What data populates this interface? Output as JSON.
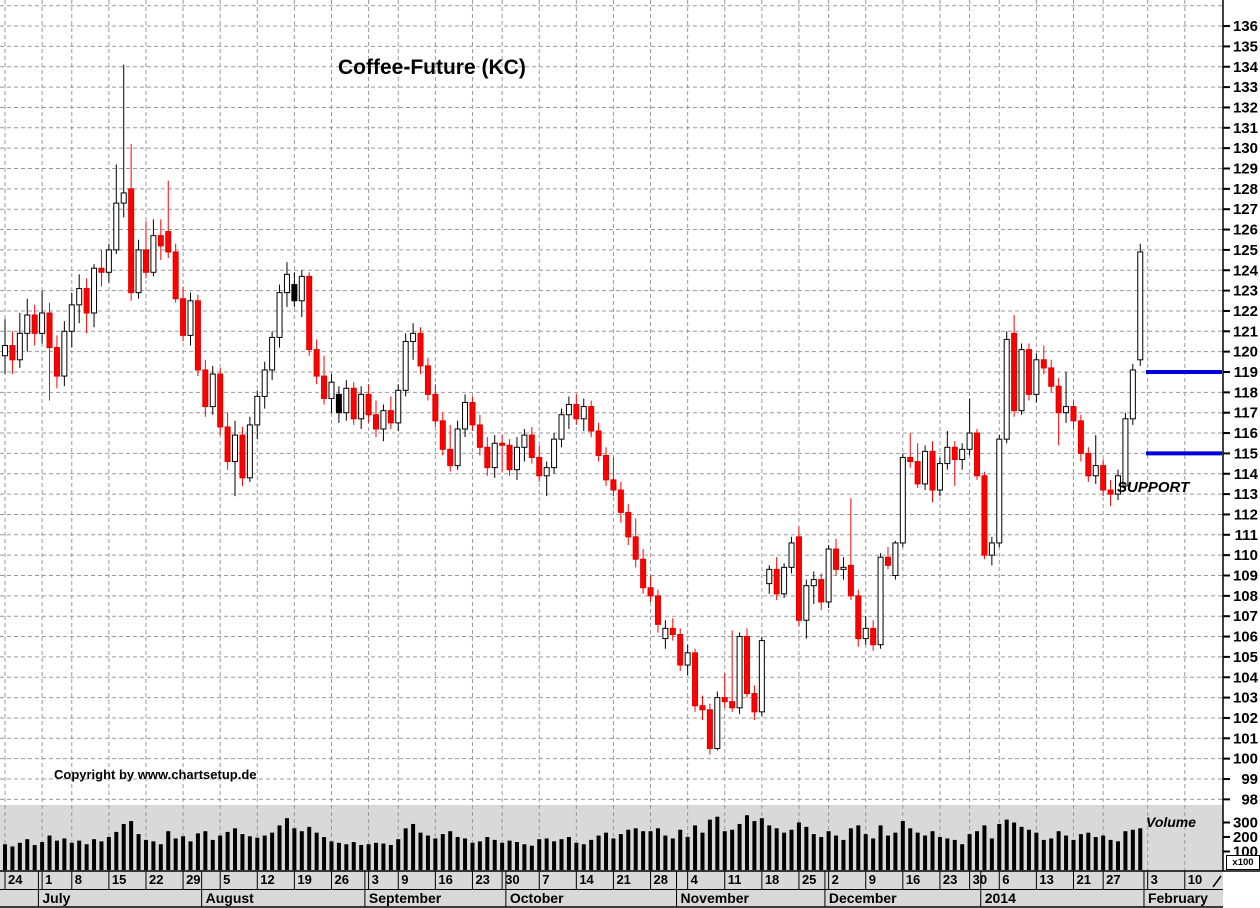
{
  "title": "Coffee-Future (KC)",
  "copyright": "Copyright by www.chartsetup.de",
  "annotations": {
    "support": "SUPPORT",
    "volume": "Volume",
    "multiplier": "x100"
  },
  "colors": {
    "up_candle": "#ffffff",
    "up_border": "#000000",
    "down_candle": "#ff0000",
    "black_candle": "#000000",
    "support_line": "#0000dd",
    "grid": "#999999",
    "volume_pane_bg": "#d9d9d9",
    "volume_bar": "#000000",
    "axis": "#000000"
  },
  "y_axis": {
    "price_labels": [
      136,
      135,
      134,
      133,
      132,
      131,
      130,
      129,
      128,
      127,
      126,
      125,
      124,
      123,
      122,
      121,
      120,
      119,
      118,
      117,
      116,
      115,
      114,
      113,
      112,
      111,
      110,
      109,
      108,
      107,
      106,
      105,
      104,
      103,
      102,
      101,
      100,
      99,
      98
    ]
  },
  "volume_axis": {
    "labels": [
      300,
      200,
      100
    ]
  },
  "chart_data": {
    "type": "candlestick+volume-bar",
    "instrument": "Coffee-Future (KC)",
    "period": "daily, late June 2013 - early February 2014",
    "price_range": [
      98,
      136
    ],
    "support_levels": [
      119,
      115
    ],
    "volume_unit_multiplier": 100,
    "legend_position": "none",
    "grid": "dashed, weekly vertical / 1-unit horizontal",
    "x_axis": {
      "week_ticks": [
        {
          "label": "24",
          "i": 0
        },
        {
          "label": "1",
          "i": 5
        },
        {
          "label": "8",
          "i": 9
        },
        {
          "label": "15",
          "i": 14
        },
        {
          "label": "22",
          "i": 19
        },
        {
          "label": "29",
          "i": 24
        },
        {
          "label": "5",
          "i": 29
        },
        {
          "label": "12",
          "i": 34
        },
        {
          "label": "19",
          "i": 39
        },
        {
          "label": "26",
          "i": 44
        },
        {
          "label": "3",
          "i": 49
        },
        {
          "label": "9",
          "i": 53
        },
        {
          "label": "16",
          "i": 58
        },
        {
          "label": "23",
          "i": 63
        },
        {
          "label": "30",
          "i": 67
        },
        {
          "label": "7",
          "i": 72
        },
        {
          "label": "14",
          "i": 77
        },
        {
          "label": "21",
          "i": 82
        },
        {
          "label": "28",
          "i": 87
        },
        {
          "label": "4",
          "i": 92
        },
        {
          "label": "11",
          "i": 97
        },
        {
          "label": "18",
          "i": 102
        },
        {
          "label": "25",
          "i": 107
        },
        {
          "label": "2",
          "i": 111
        },
        {
          "label": "9",
          "i": 116
        },
        {
          "label": "16",
          "i": 121
        },
        {
          "label": "23",
          "i": 126
        },
        {
          "label": "30",
          "i": 130
        },
        {
          "label": "6",
          "i": 134
        },
        {
          "label": "13",
          "i": 139
        },
        {
          "label": "21",
          "i": 144
        },
        {
          "label": "27",
          "i": 148
        },
        {
          "label": "3",
          "i": 154
        },
        {
          "label": "10",
          "i": 159
        }
      ],
      "months": [
        {
          "label": "July",
          "i": 5
        },
        {
          "label": "August",
          "i": 27
        },
        {
          "label": "September",
          "i": 49
        },
        {
          "label": "October",
          "i": 68
        },
        {
          "label": "November",
          "i": 91
        },
        {
          "label": "December",
          "i": 111
        },
        {
          "label": "2014",
          "i": 132
        },
        {
          "label": "February",
          "i": 154
        }
      ]
    },
    "columns": [
      "open",
      "high",
      "low",
      "close",
      "volume_x100"
    ],
    "black_body_indices": [
      39,
      45
    ],
    "candles": [
      [
        119.8,
        121.6,
        118.9,
        120.3,
        150
      ],
      [
        120.3,
        121.0,
        118.9,
        119.6,
        135
      ],
      [
        119.6,
        121.9,
        119.2,
        120.9,
        160
      ],
      [
        120.9,
        122.6,
        120.0,
        121.8,
        185
      ],
      [
        121.8,
        122.3,
        120.3,
        120.9,
        145
      ],
      [
        120.9,
        123.0,
        120.4,
        121.9,
        165
      ],
      [
        121.9,
        122.4,
        117.6,
        120.2,
        210
      ],
      [
        120.2,
        120.8,
        118.2,
        118.8,
        175
      ],
      [
        118.8,
        121.5,
        118.3,
        121.0,
        190
      ],
      [
        121.0,
        122.9,
        120.2,
        122.3,
        160
      ],
      [
        122.3,
        123.8,
        121.4,
        123.1,
        175
      ],
      [
        123.1,
        123.6,
        120.9,
        121.9,
        150
      ],
      [
        121.9,
        124.3,
        121.2,
        124.1,
        185
      ],
      [
        124.1,
        125.0,
        123.2,
        123.9,
        170
      ],
      [
        123.9,
        125.3,
        123.4,
        125.0,
        200
      ],
      [
        125.0,
        129.2,
        124.8,
        127.3,
        235
      ],
      [
        127.3,
        134.1,
        126.6,
        127.8,
        290
      ],
      [
        128.0,
        130.2,
        122.5,
        122.9,
        310
      ],
      [
        122.9,
        125.5,
        122.6,
        125.0,
        220
      ],
      [
        125.0,
        126.4,
        123.6,
        123.9,
        180
      ],
      [
        123.9,
        126.5,
        123.7,
        125.7,
        170
      ],
      [
        125.7,
        126.5,
        124.5,
        125.2,
        150
      ],
      [
        125.9,
        128.4,
        124.6,
        124.9,
        240
      ],
      [
        124.9,
        125.3,
        122.4,
        122.6,
        190
      ],
      [
        122.6,
        123.2,
        120.5,
        120.8,
        205
      ],
      [
        120.8,
        122.9,
        120.3,
        122.5,
        170
      ],
      [
        122.5,
        122.8,
        118.8,
        119.1,
        225
      ],
      [
        119.1,
        119.6,
        116.8,
        117.3,
        240
      ],
      [
        117.3,
        119.3,
        116.9,
        118.9,
        180
      ],
      [
        118.9,
        119.2,
        115.9,
        116.3,
        210
      ],
      [
        116.3,
        117.0,
        114.2,
        114.6,
        235
      ],
      [
        114.6,
        116.6,
        112.9,
        115.9,
        260
      ],
      [
        115.9,
        116.3,
        113.4,
        113.8,
        220
      ],
      [
        113.8,
        116.8,
        113.6,
        116.4,
        205
      ],
      [
        116.4,
        118.1,
        115.7,
        117.8,
        195
      ],
      [
        117.8,
        119.5,
        117.2,
        119.1,
        210
      ],
      [
        119.1,
        121.0,
        118.6,
        120.7,
        230
      ],
      [
        120.7,
        123.3,
        120.2,
        122.9,
        280
      ],
      [
        122.9,
        124.4,
        122.2,
        123.8,
        330
      ],
      [
        123.3,
        123.9,
        122.2,
        122.5,
        260
      ],
      [
        122.5,
        124.0,
        121.7,
        123.7,
        240
      ],
      [
        123.7,
        123.9,
        119.8,
        120.1,
        270
      ],
      [
        120.1,
        120.6,
        118.4,
        118.8,
        230
      ],
      [
        118.8,
        119.8,
        117.4,
        117.7,
        200
      ],
      [
        117.7,
        118.9,
        117.0,
        118.5,
        170
      ],
      [
        117.9,
        118.3,
        116.5,
        117.0,
        160
      ],
      [
        117.0,
        118.6,
        116.6,
        118.2,
        150
      ],
      [
        118.2,
        118.5,
        116.4,
        116.7,
        165
      ],
      [
        116.7,
        118.3,
        116.2,
        117.9,
        145
      ],
      [
        117.9,
        118.4,
        116.5,
        116.9,
        150
      ],
      [
        116.9,
        117.6,
        115.8,
        116.2,
        160
      ],
      [
        116.2,
        117.4,
        115.6,
        117.1,
        155
      ],
      [
        117.1,
        117.8,
        116.2,
        116.5,
        145
      ],
      [
        116.5,
        118.4,
        116.1,
        118.1,
        185
      ],
      [
        118.1,
        120.9,
        117.8,
        120.5,
        260
      ],
      [
        120.5,
        121.4,
        119.6,
        120.9,
        290
      ],
      [
        120.9,
        121.2,
        118.9,
        119.3,
        230
      ],
      [
        119.3,
        119.7,
        117.6,
        117.9,
        210
      ],
      [
        117.9,
        118.4,
        116.3,
        116.6,
        190
      ],
      [
        116.6,
        117.0,
        114.9,
        115.2,
        220
      ],
      [
        115.2,
        116.4,
        114.1,
        114.4,
        240
      ],
      [
        114.4,
        116.6,
        114.2,
        116.2,
        200
      ],
      [
        116.2,
        117.9,
        115.8,
        117.5,
        190
      ],
      [
        117.5,
        117.8,
        116.1,
        116.4,
        160
      ],
      [
        116.4,
        116.9,
        114.9,
        115.3,
        170
      ],
      [
        115.3,
        115.8,
        113.9,
        114.3,
        200
      ],
      [
        114.3,
        115.9,
        113.8,
        115.5,
        180
      ],
      [
        115.5,
        115.9,
        114.1,
        115.4,
        160
      ],
      [
        115.4,
        115.7,
        113.9,
        114.2,
        175
      ],
      [
        114.2,
        115.8,
        113.7,
        115.3,
        165
      ],
      [
        115.3,
        116.2,
        114.6,
        115.9,
        150
      ],
      [
        115.9,
        116.3,
        114.5,
        114.8,
        140
      ],
      [
        114.8,
        115.4,
        113.6,
        113.9,
        185
      ],
      [
        113.9,
        114.6,
        112.9,
        114.3,
        190
      ],
      [
        114.3,
        116.0,
        114.0,
        115.7,
        170
      ],
      [
        115.7,
        117.2,
        115.3,
        116.9,
        185
      ],
      [
        116.9,
        117.8,
        116.2,
        117.4,
        200
      ],
      [
        117.4,
        117.9,
        116.4,
        116.7,
        160
      ],
      [
        116.7,
        117.7,
        116.1,
        117.3,
        150
      ],
      [
        117.3,
        117.6,
        115.8,
        116.1,
        180
      ],
      [
        116.1,
        116.5,
        114.6,
        114.9,
        210
      ],
      [
        114.9,
        115.3,
        113.4,
        113.7,
        230
      ],
      [
        113.7,
        114.8,
        112.9,
        113.2,
        190
      ],
      [
        113.2,
        113.6,
        111.6,
        112.1,
        220
      ],
      [
        112.1,
        112.5,
        110.5,
        110.9,
        250
      ],
      [
        110.9,
        111.8,
        109.4,
        109.8,
        260
      ],
      [
        109.8,
        110.3,
        108.1,
        108.4,
        240
      ],
      [
        108.4,
        109.0,
        107.7,
        108.0,
        240
      ],
      [
        108.0,
        108.3,
        106.2,
        106.6,
        260
      ],
      [
        105.9,
        106.8,
        105.4,
        106.4,
        210
      ],
      [
        106.4,
        106.9,
        105.8,
        106.1,
        190
      ],
      [
        106.1,
        106.4,
        104.3,
        104.6,
        250
      ],
      [
        104.6,
        105.6,
        104.1,
        105.2,
        200
      ],
      [
        105.2,
        105.4,
        102.3,
        102.6,
        280
      ],
      [
        102.6,
        103.1,
        101.9,
        102.4,
        230
      ],
      [
        102.4,
        102.7,
        100.2,
        100.5,
        320
      ],
      [
        100.5,
        103.3,
        100.4,
        103.0,
        340
      ],
      [
        103.0,
        104.2,
        102.5,
        102.8,
        240
      ],
      [
        102.8,
        106.3,
        102.3,
        102.5,
        250
      ],
      [
        102.5,
        106.2,
        102.2,
        106.0,
        290
      ],
      [
        106.0,
        106.4,
        103.0,
        103.2,
        350
      ],
      [
        103.2,
        103.6,
        101.9,
        102.3,
        310
      ],
      [
        102.3,
        106.0,
        102.1,
        105.8,
        330
      ],
      [
        108.6,
        109.5,
        108.1,
        109.3,
        280
      ],
      [
        109.3,
        109.9,
        107.8,
        108.1,
        260
      ],
      [
        108.1,
        109.6,
        107.9,
        109.4,
        230
      ],
      [
        109.4,
        110.9,
        109.1,
        110.6,
        250
      ],
      [
        110.9,
        111.4,
        106.5,
        106.8,
        300
      ],
      [
        106.8,
        108.8,
        105.9,
        108.5,
        270
      ],
      [
        108.5,
        109.2,
        107.6,
        108.8,
        220
      ],
      [
        108.8,
        109.1,
        107.3,
        107.7,
        200
      ],
      [
        107.7,
        110.5,
        107.4,
        110.3,
        240
      ],
      [
        110.3,
        110.8,
        109.0,
        109.3,
        210
      ],
      [
        109.3,
        109.9,
        108.8,
        109.4,
        180
      ],
      [
        109.5,
        112.8,
        107.8,
        108.0,
        260
      ],
      [
        108.0,
        108.3,
        105.5,
        105.9,
        280
      ],
      [
        105.9,
        107.0,
        105.6,
        106.4,
        220
      ],
      [
        106.4,
        106.8,
        105.3,
        105.6,
        190
      ],
      [
        105.6,
        110.1,
        105.4,
        109.9,
        280
      ],
      [
        109.9,
        110.4,
        109.3,
        109.5,
        210
      ],
      [
        109.0,
        110.7,
        108.8,
        110.6,
        230
      ],
      [
        110.6,
        115.0,
        110.4,
        114.8,
        310
      ],
      [
        114.8,
        116.0,
        114.3,
        114.6,
        260
      ],
      [
        114.6,
        115.5,
        113.3,
        113.5,
        230
      ],
      [
        113.5,
        115.4,
        113.2,
        115.1,
        210
      ],
      [
        115.1,
        115.6,
        112.6,
        113.2,
        240
      ],
      [
        113.2,
        114.8,
        112.9,
        114.5,
        200
      ],
      [
        114.5,
        116.1,
        114.2,
        115.3,
        190
      ],
      [
        115.3,
        115.6,
        113.4,
        114.7,
        180
      ],
      [
        114.7,
        115.5,
        114.2,
        115.2,
        150
      ],
      [
        115.2,
        117.7,
        114.9,
        116.0,
        220
      ],
      [
        116.0,
        116.2,
        113.7,
        113.9,
        240
      ],
      [
        113.9,
        114.1,
        109.8,
        110.0,
        280
      ],
      [
        110.0,
        110.9,
        109.5,
        110.6,
        190
      ],
      [
        110.6,
        115.9,
        110.4,
        115.7,
        290
      ],
      [
        115.7,
        121.0,
        115.5,
        120.6,
        320
      ],
      [
        120.9,
        121.8,
        116.8,
        117.1,
        300
      ],
      [
        117.1,
        120.4,
        116.9,
        120.1,
        270
      ],
      [
        120.1,
        120.4,
        117.6,
        117.9,
        250
      ],
      [
        117.9,
        119.9,
        117.5,
        119.6,
        230
      ],
      [
        119.6,
        120.3,
        118.9,
        119.2,
        180
      ],
      [
        119.2,
        119.6,
        118.0,
        118.3,
        190
      ],
      [
        118.3,
        118.7,
        115.4,
        117.0,
        240
      ],
      [
        117.0,
        119.0,
        116.5,
        117.3,
        210
      ],
      [
        117.3,
        117.6,
        116.2,
        116.6,
        180
      ],
      [
        116.6,
        116.9,
        114.6,
        115.0,
        220
      ],
      [
        115.0,
        115.3,
        113.6,
        113.9,
        230
      ],
      [
        113.9,
        115.9,
        113.5,
        114.4,
        200
      ],
      [
        114.4,
        114.7,
        112.9,
        113.2,
        210
      ],
      [
        113.2,
        113.7,
        112.4,
        113.0,
        180
      ],
      [
        113.0,
        114.2,
        112.7,
        113.9,
        170
      ],
      [
        113.4,
        117.0,
        113.2,
        116.7,
        240
      ],
      [
        116.7,
        119.4,
        116.4,
        119.1,
        250
      ],
      [
        119.6,
        125.3,
        119.3,
        124.9,
        260
      ]
    ]
  }
}
